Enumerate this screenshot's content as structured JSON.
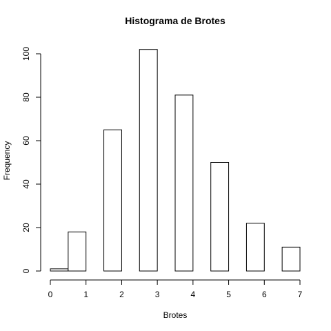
{
  "chart_data": {
    "type": "bar",
    "subtype": "histogram",
    "title": "Histograma de Brotes",
    "xlabel": "Brotes",
    "ylabel": "Frequency",
    "bins": [
      {
        "start": 0.0,
        "end": 0.5,
        "count": 1
      },
      {
        "start": 0.5,
        "end": 1.0,
        "count": 18
      },
      {
        "start": 1.0,
        "end": 1.5,
        "count": 0
      },
      {
        "start": 1.5,
        "end": 2.0,
        "count": 65
      },
      {
        "start": 2.0,
        "end": 2.5,
        "count": 0
      },
      {
        "start": 2.5,
        "end": 3.0,
        "count": 102
      },
      {
        "start": 3.0,
        "end": 3.5,
        "count": 0
      },
      {
        "start": 3.5,
        "end": 4.0,
        "count": 81
      },
      {
        "start": 4.0,
        "end": 4.5,
        "count": 0
      },
      {
        "start": 4.5,
        "end": 5.0,
        "count": 50
      },
      {
        "start": 5.0,
        "end": 5.5,
        "count": 0
      },
      {
        "start": 5.5,
        "end": 6.0,
        "count": 22
      },
      {
        "start": 6.0,
        "end": 6.5,
        "count": 0
      },
      {
        "start": 6.5,
        "end": 7.0,
        "count": 11
      }
    ],
    "xlim": [
      0,
      7
    ],
    "ylim": [
      0,
      100
    ],
    "xticks": [
      0,
      1,
      2,
      3,
      4,
      5,
      6,
      7
    ],
    "yticks": [
      0,
      20,
      40,
      60,
      80,
      100
    ],
    "bar_fill": "#ffffff",
    "bar_stroke": "#000000",
    "grid": false,
    "legend": "none"
  }
}
